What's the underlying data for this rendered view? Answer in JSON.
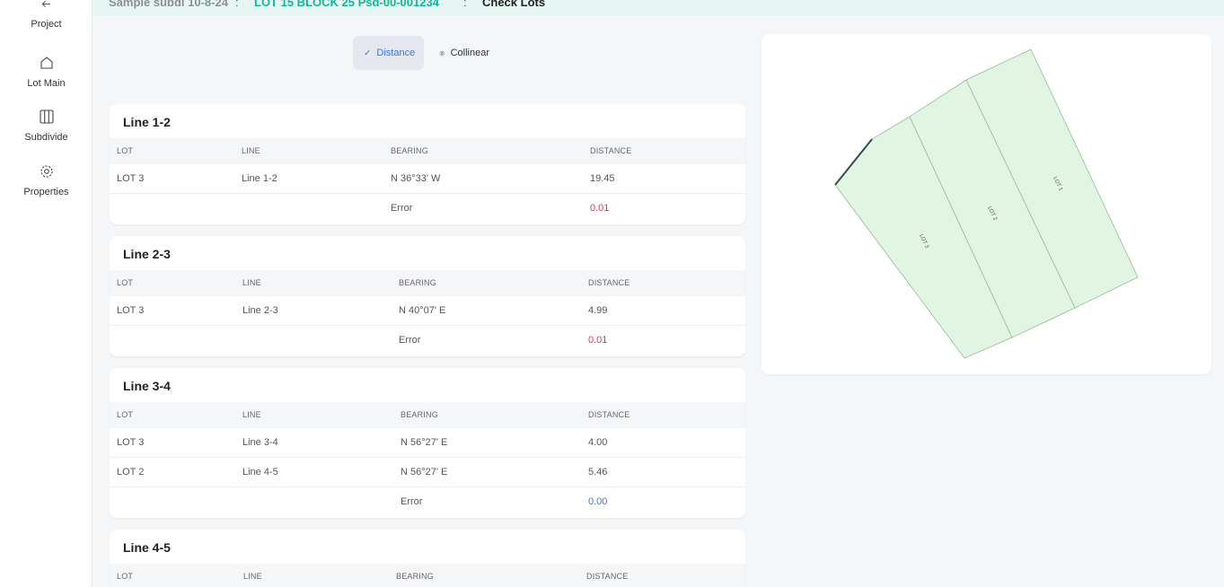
{
  "sidebar": {
    "items": [
      {
        "label": "Project",
        "icon": "arrow-left-icon"
      },
      {
        "label": "Lot Main",
        "icon": "home-icon"
      },
      {
        "label": "Subdivide",
        "icon": "columns-icon"
      },
      {
        "label": "Properties",
        "icon": "gear-icon"
      }
    ]
  },
  "breadcrumb": {
    "project": "Sample subdi 10-8-24",
    "separator": ":",
    "lot": "LOT 15 BLOCK 25 Psd-00-001234",
    "page": "Check Lots"
  },
  "tabs": [
    {
      "label": "Distance",
      "icon": "check-icon",
      "active": true
    },
    {
      "label": "Collinear",
      "icon": "gear-icon",
      "active": false
    }
  ],
  "table_headers": {
    "lot": "LOT",
    "line": "LINE",
    "bearing": "BEARING",
    "distance": "DISTANCE"
  },
  "error_label": "Error",
  "cards": [
    {
      "title": "Line 1-2",
      "rows": [
        {
          "lot": "LOT 3",
          "line": "Line 1-2",
          "bearing": "N 36°33' W",
          "distance": "19.45"
        }
      ],
      "error": "0.01"
    },
    {
      "title": "Line 2-3",
      "rows": [
        {
          "lot": "LOT 3",
          "line": "Line 2-3",
          "bearing": "N 40°07' E",
          "distance": "4.99"
        }
      ],
      "error": "0.01"
    },
    {
      "title": "Line 3-4",
      "rows": [
        {
          "lot": "LOT 3",
          "line": "Line 3-4",
          "bearing": "N 56°27' E",
          "distance": "4.00"
        },
        {
          "lot": "LOT 2",
          "line": "Line 4-5",
          "bearing": "N 56°27' E",
          "distance": "5.46"
        }
      ],
      "error": "0.00"
    },
    {
      "title": "Line 4-5"
    }
  ],
  "plot": {
    "lot_labels": [
      "LOT 1",
      "LOT 2",
      "LOT 3"
    ],
    "fill_color": "#e2f5e2",
    "stroke_color": "#8fbf8f",
    "highlight_color": "#2f4f4f"
  },
  "colors": {
    "accent": "#3d74e0",
    "error_red": "#e0385b",
    "brand_teal": "#14b39a"
  }
}
